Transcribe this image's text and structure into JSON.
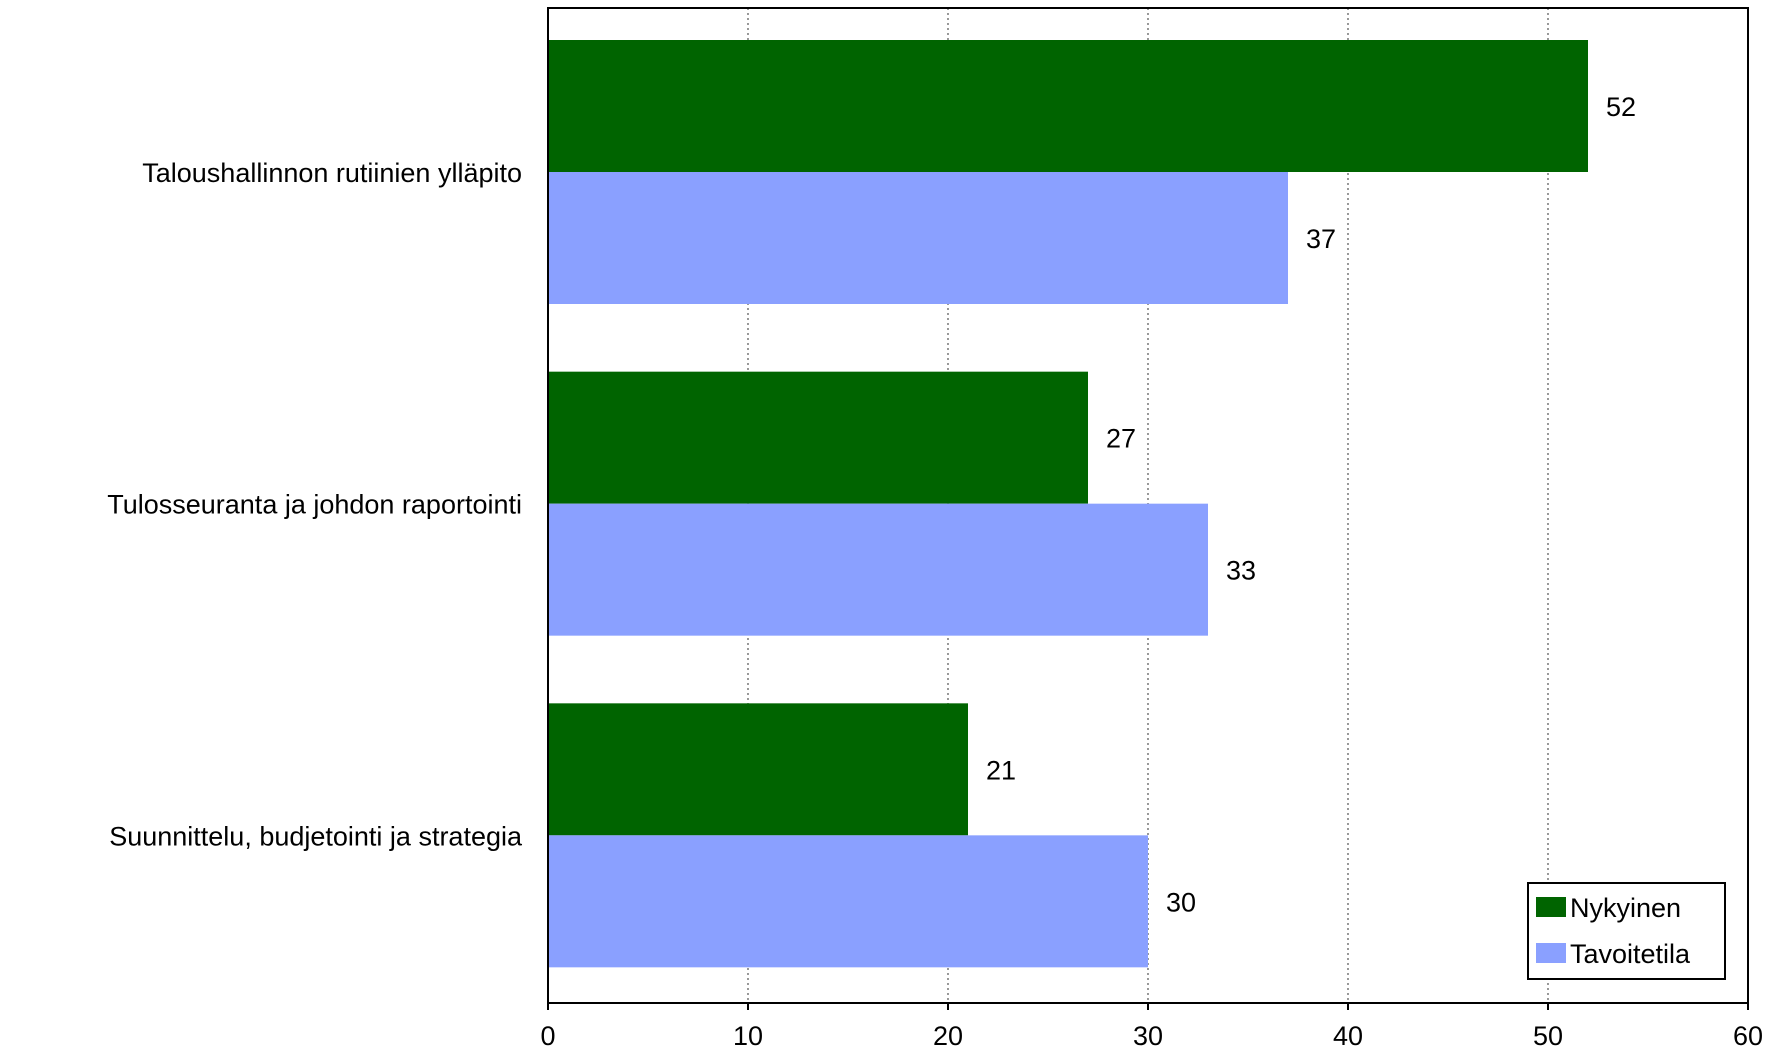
{
  "chart_data": {
    "type": "bar",
    "orientation": "horizontal",
    "categories": [
      "Taloushallinnon rutiinien ylläpito",
      "Tulosseuranta ja johdon raportointi",
      "Suunnittelu, budjetointi ja strategia"
    ],
    "series": [
      {
        "name": "Nykyinen",
        "color": "#006400",
        "values": [
          52,
          27,
          21
        ]
      },
      {
        "name": "Tavoitetila",
        "color": "#8aa0ff",
        "values": [
          37,
          33,
          30
        ]
      }
    ],
    "xlim": [
      0,
      60
    ],
    "xticks": [
      0,
      10,
      20,
      30,
      40,
      50,
      60
    ],
    "grid": "vertical-dotted",
    "legend_position": "bottom-right",
    "title": "",
    "xlabel": "",
    "ylabel": ""
  }
}
